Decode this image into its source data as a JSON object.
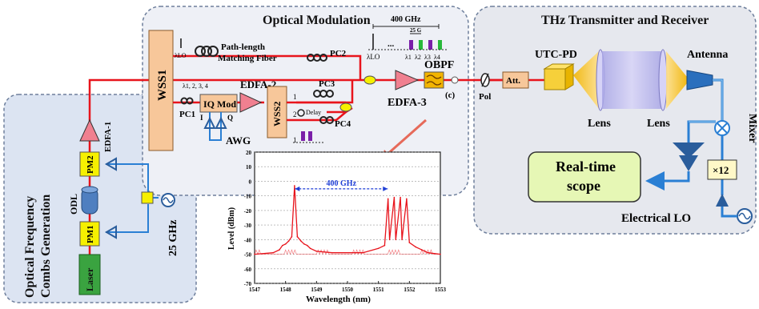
{
  "sections": {
    "comb_title": [
      "Optical Frequency",
      "Combs Generation"
    ],
    "modulation_title": "Optical Modulation",
    "thz_title": "THz Transmitter and Receiver"
  },
  "comb": {
    "laser": "Laser",
    "pm1": "PM1",
    "pm2": "PM2",
    "odl": "ODL",
    "edfa1": "EDFA-1",
    "rf_source": "25 GHz"
  },
  "modulation": {
    "wss1": "WSS1",
    "wss2": "WSS2",
    "path_fiber": [
      "Path-length",
      "Matching Fiber"
    ],
    "lo_label": "λLO",
    "ch_labels": "λ1, 2, 3, 4",
    "pc1": "PC1",
    "pc2": "PC2",
    "pc3": "PC3",
    "pc4": "PC4",
    "iq_mod": "IQ Mod",
    "edfa2": "EDFA-2",
    "awg": "AWG",
    "i_port": "I",
    "q_port": "Q",
    "delay": "Delay",
    "port1": "1",
    "port2": "2",
    "spacing_top": "400 GHz",
    "spacing_small": "25 G",
    "spec_lo": "λLO",
    "spec_channels": [
      "λ1",
      "λ2",
      "λ3",
      "λ4"
    ],
    "ellipsis": "...",
    "obpf": "OBPF",
    "edfa3": "EDFA-3",
    "point_c": "(c)",
    "pol": "Pol",
    "att": "Att."
  },
  "thz": {
    "utc_pd": "UTC-PD",
    "lens1": "Lens",
    "lens2": "Lens",
    "antenna": "Antenna",
    "mixer": "Mixer",
    "mult": "×12",
    "scope": [
      "Real-time",
      "scope"
    ],
    "lo": "Electrical LO"
  },
  "colors": {
    "red_fiber": "#e8141c",
    "blue_line": "#2a7fd4",
    "panel_fill": "#dce4f2",
    "yellow_box": "#f6f000",
    "green_box": "#3aa340",
    "wss_fill": "#f7c79a",
    "scope_fill": "#e6f7b5",
    "lens_fill": "#b9b6ee",
    "amp_fill": "#f08090",
    "blue_amp": "#2a5d9c",
    "purple_bar": "#7a1fa8",
    "green_bar": "#28b83a"
  },
  "chart_data": {
    "type": "line",
    "title": "",
    "xlabel": "Wavelength (nm)",
    "ylabel": "Level (dBm)",
    "xlim": [
      1547,
      1553
    ],
    "ylim": [
      -70,
      20
    ],
    "xticks": [
      "1547",
      "1548",
      "1549",
      "1550",
      "1551",
      "1552",
      "1553"
    ],
    "yticks": [
      "20",
      "10",
      "0",
      "-10",
      "-20",
      "-30",
      "-40",
      "-50",
      "-60",
      "-70"
    ],
    "grid": true,
    "annotation": "400 GHz",
    "noise_floor": -50,
    "series": [
      {
        "values": [
          [
            1547.0,
            -50
          ],
          [
            1547.6,
            -49
          ],
          [
            1547.8,
            -47
          ],
          [
            1547.9,
            -44
          ],
          [
            1548.0,
            -43
          ],
          [
            1548.1,
            -41
          ],
          [
            1548.2,
            -38
          ],
          [
            1548.29,
            -3
          ],
          [
            1548.38,
            -38
          ],
          [
            1548.5,
            -41
          ],
          [
            1548.6,
            -43
          ],
          [
            1548.7,
            -44
          ],
          [
            1548.8,
            -46
          ],
          [
            1549.0,
            -48
          ],
          [
            1549.5,
            -49
          ],
          [
            1550.5,
            -49
          ],
          [
            1551.0,
            -46
          ],
          [
            1551.2,
            -44
          ],
          [
            1551.31,
            -12
          ],
          [
            1551.36,
            -40
          ],
          [
            1551.51,
            -11
          ],
          [
            1551.56,
            -40
          ],
          [
            1551.71,
            -11
          ],
          [
            1551.76,
            -40
          ],
          [
            1551.91,
            -12
          ],
          [
            1552.0,
            -42
          ],
          [
            1552.2,
            -45
          ],
          [
            1552.4,
            -47
          ],
          [
            1552.6,
            -49
          ],
          [
            1553.0,
            -50
          ]
        ]
      }
    ]
  }
}
